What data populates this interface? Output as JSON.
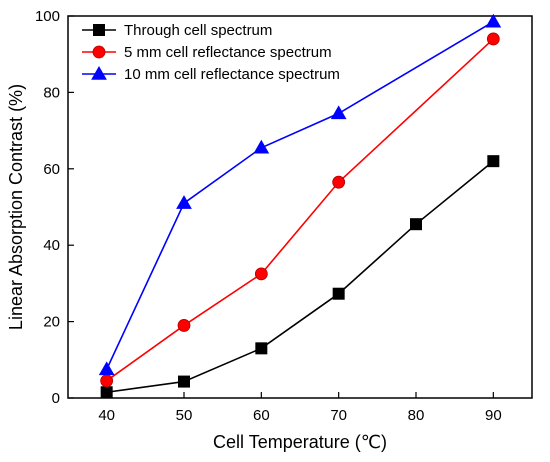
{
  "chart_data": {
    "type": "line",
    "title": "",
    "xlabel": "Cell Temperature (℃)",
    "ylabel": "Linear Absorption Contrast (%)",
    "xlim": [
      35,
      95
    ],
    "ylim": [
      0,
      100
    ],
    "xticks": [
      40,
      50,
      60,
      70,
      80,
      90
    ],
    "yticks": [
      0,
      20,
      40,
      60,
      80,
      100
    ],
    "grid": false,
    "legend_position": "top-left",
    "series": [
      {
        "name": "Through cell spectrum",
        "marker": "square",
        "color": "#000000",
        "x": [
          40,
          50,
          60,
          70,
          80,
          90
        ],
        "y": [
          1.5,
          4.3,
          13.0,
          27.3,
          45.5,
          62.0
        ]
      },
      {
        "name": "5 mm cell reflectance spectrum",
        "marker": "circle",
        "color": "#ff0000",
        "x": [
          40,
          50,
          60,
          70,
          90
        ],
        "y": [
          4.5,
          19.0,
          32.5,
          56.5,
          94.0
        ]
      },
      {
        "name": "10 mm cell reflectance spectrum",
        "marker": "triangle",
        "color": "#0000ff",
        "x": [
          40,
          50,
          60,
          70,
          90
        ],
        "y": [
          7.5,
          51.0,
          65.5,
          74.5,
          98.5
        ]
      }
    ]
  }
}
